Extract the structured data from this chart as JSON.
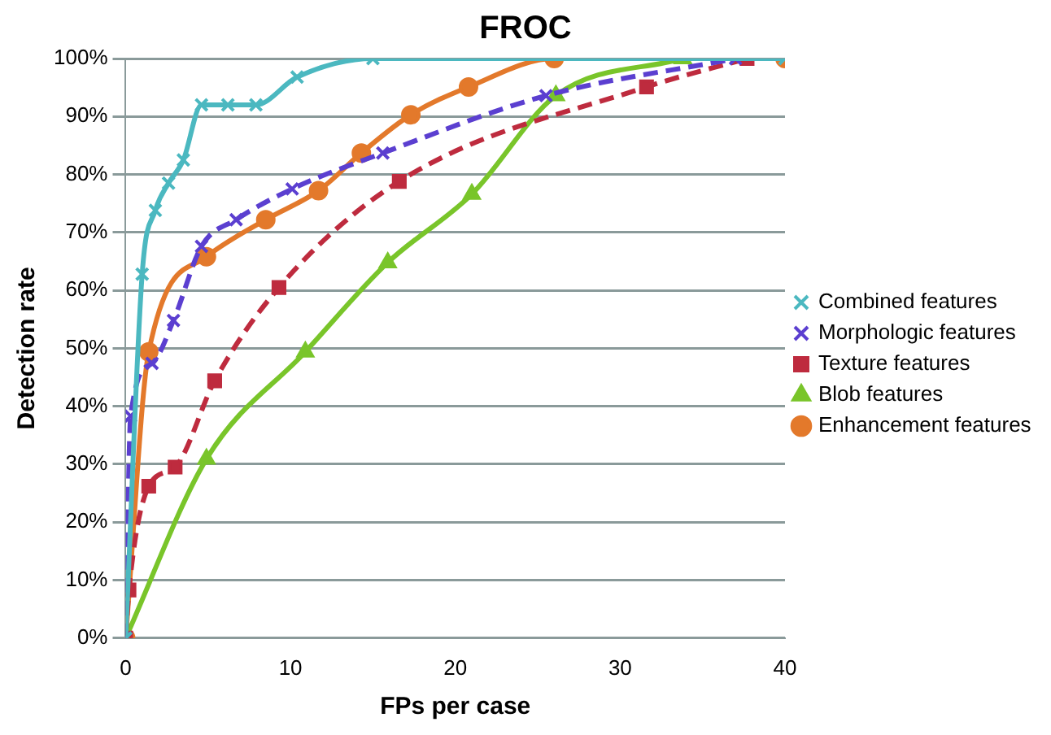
{
  "chart_data": {
    "type": "line",
    "title": "FROC",
    "xlabel": "FPs per case",
    "ylabel": "Detection rate",
    "xlim": [
      0,
      40
    ],
    "xticks": [
      0,
      10,
      20,
      30,
      40
    ],
    "ylim": [
      0,
      100
    ],
    "yticks": [
      {
        "value": 0,
        "label": "0%"
      },
      {
        "value": 10,
        "label": "10%"
      },
      {
        "value": 20,
        "label": "20%"
      },
      {
        "value": 30,
        "label": "30%"
      },
      {
        "value": 40,
        "label": "40%"
      },
      {
        "value": 50,
        "label": "50%"
      },
      {
        "value": 60,
        "label": "60%"
      },
      {
        "value": 70,
        "label": "70%"
      },
      {
        "value": 80,
        "label": "80%"
      },
      {
        "value": 90,
        "label": "90%"
      },
      {
        "value": 100,
        "label": "100%"
      }
    ],
    "grid": "y",
    "legend": "right",
    "series": [
      {
        "name": "Combined features",
        "color": "#4bb8c0",
        "marker": "cross",
        "line_style": "solid",
        "x": [
          0,
          1.0,
          1.8,
          2.6,
          3.5,
          4.6,
          6.2,
          7.9,
          10.4,
          15,
          40
        ],
        "values": [
          0,
          62.8,
          73.8,
          78.5,
          82.5,
          92,
          92,
          92,
          96.8,
          100,
          100
        ]
      },
      {
        "name": "Morphologic features",
        "color": "#5b3fd0",
        "marker": "cross",
        "line_style": "dashed",
        "x": [
          0,
          0.3,
          1.6,
          2.9,
          4.6,
          6.7,
          10.1,
          15.6,
          25.5,
          37
        ],
        "values": [
          0,
          38.3,
          47.4,
          54.8,
          67.6,
          72.2,
          77.5,
          83.7,
          93.6,
          100
        ]
      },
      {
        "name": "Texture features",
        "color": "#be2b3e",
        "marker": "square",
        "line_style": "dashed",
        "x": [
          0,
          0.2,
          1.4,
          3.0,
          5.4,
          9.3,
          16.6,
          31.6,
          37.7
        ],
        "values": [
          0,
          8.3,
          26.2,
          29.5,
          44.4,
          60.5,
          78.8,
          95.1,
          100
        ]
      },
      {
        "name": "Blob features",
        "color": "#79c52a",
        "marker": "triangle",
        "line_style": "solid",
        "x": [
          0,
          4.9,
          10.9,
          15.9,
          21,
          26.1,
          33.8
        ],
        "values": [
          0,
          30.9,
          49.4,
          64.8,
          76.6,
          93.6,
          100
        ]
      },
      {
        "name": "Enhancement features",
        "color": "#e3792b",
        "marker": "circle",
        "line_style": "solid",
        "x": [
          0,
          1.4,
          4.9,
          8.5,
          11.7,
          14.3,
          17.3,
          20.8,
          26,
          40
        ],
        "values": [
          0,
          49.4,
          65.8,
          72.2,
          77.2,
          83.7,
          90.3,
          95.1,
          100,
          100
        ]
      }
    ]
  }
}
